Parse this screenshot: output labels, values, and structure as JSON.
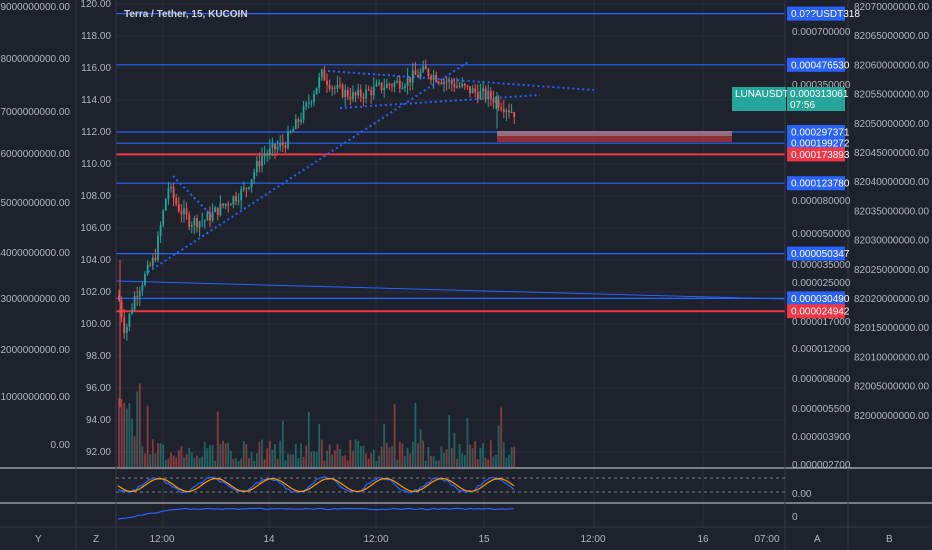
{
  "chart_data": {
    "type": "candlestick",
    "title": "Terra / Tether, 15, KUCOIN",
    "price_axis": {
      "ticks": [
        "120.00",
        "118.00",
        "116.00",
        "114.00",
        "112.00",
        "110.00",
        "108.00",
        "106.00",
        "104.00",
        "102.00",
        "100.00",
        "98.00",
        "96.00",
        "94.00",
        "92.00"
      ],
      "range": [
        91.0,
        120.0
      ]
    },
    "volume_axis": {
      "ticks": [
        "9000000000.00",
        "8000000000.00",
        "7000000000.00",
        "6000000000.00",
        "5000000000.00",
        "4000000000.00",
        "3000000000.00",
        "2000000000.00",
        "1000000000.00",
        "0.00"
      ]
    },
    "secondary_axis": {
      "ticks": [
        "0.000700000",
        "0.000350000",
        "0.000080000",
        "0.000050000",
        "0.000035000",
        "0.000025000",
        "0.000017000",
        "0.000012000",
        "0.000008000",
        "0.000005500",
        "0.000003900",
        "0.000002700"
      ]
    },
    "far_right_axis": {
      "ticks": [
        "82070000000.00",
        "82065000000.00",
        "82060000000.00",
        "82055000000.00",
        "82050000000.00",
        "82045000000.00",
        "82040000000.00",
        "82035000000.00",
        "82030000000.00",
        "82025000000.00",
        "82020000000.00",
        "82015000000.00",
        "82010000000.00",
        "82005000000.00",
        "82000000000.00"
      ]
    },
    "time_axis": {
      "ticks": [
        "12:00",
        "14",
        "12:00",
        "15",
        "12:00",
        "16",
        "07:00"
      ]
    },
    "horizontal_levels": [
      {
        "price": 119.4,
        "label": "0.0??USDT318",
        "color": "#2962ff"
      },
      {
        "price": 116.2,
        "label": "0.000476530",
        "color": "#2962ff"
      },
      {
        "price": 112.0,
        "label": "0.000297371",
        "color": "#2962ff"
      },
      {
        "price": 111.3,
        "label": "0.000199272",
        "color": "#2962ff"
      },
      {
        "price": 110.6,
        "label": "0.000173893",
        "color": "#f23645"
      },
      {
        "price": 108.8,
        "label": "0.000123780",
        "color": "#2962ff"
      },
      {
        "price": 104.4,
        "label": "0.000050347",
        "color": "#2962ff"
      },
      {
        "price": 101.6,
        "label": "0.000030490",
        "color": "#2962ff"
      },
      {
        "price": 100.8,
        "label": "0.000024942",
        "color": "#f23645"
      }
    ],
    "current": {
      "symbol": "LUNAUSDT",
      "value": "0.000313061",
      "countdown": "07:56",
      "price": 113.2,
      "color": "#26a69a"
    },
    "oscillator_ticks": [
      "0.00"
    ],
    "lower_ticks": [
      "0"
    ],
    "bottom_letters": [
      "Y",
      "Z",
      "A",
      "B"
    ],
    "colors": {
      "up": "#26a69a",
      "down": "#ef5350",
      "level": "#2962ff",
      "red_level": "#f23645",
      "trend": "#2962ff"
    }
  }
}
